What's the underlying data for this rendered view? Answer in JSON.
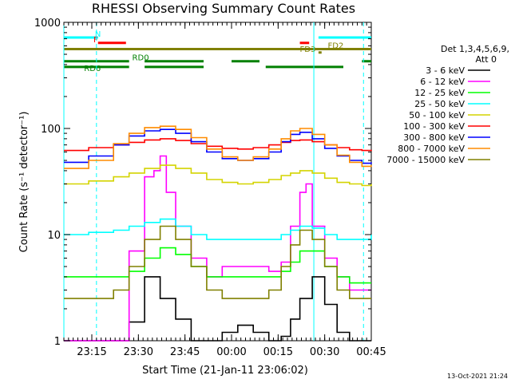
{
  "chart_data": {
    "type": "line",
    "title": "RHESSI Observing Summary Count Rates",
    "xlabel": "Start Time (21-Jan-11 23:06:02)",
    "ylabel": "Count Rate (s⁻¹ detector⁻¹)",
    "y_scale": "log",
    "ylim": [
      1,
      1000
    ],
    "xlim_minutes": [
      0,
      99
    ],
    "x_ticks": [
      {
        "label": "23:15",
        "t": 9
      },
      {
        "label": "23:30",
        "t": 24
      },
      {
        "label": "23:45",
        "t": 39
      },
      {
        "label": "00:00",
        "t": 54
      },
      {
        "label": "00:15",
        "t": 69
      },
      {
        "label": "00:30",
        "t": 84
      },
      {
        "label": "00:45",
        "t": 99
      }
    ],
    "y_ticks": [
      {
        "label": "1",
        "v": 1
      },
      {
        "label": "10",
        "v": 10
      },
      {
        "label": "100",
        "v": 100
      },
      {
        "label": "1000",
        "v": 1000
      }
    ],
    "legend_header": [
      "Det 1,3,4,5,6,9,",
      "Att 0"
    ],
    "series": [
      {
        "name": "3 - 6 keV",
        "color": "#000000",
        "x": [
          0,
          8,
          16,
          21,
          26,
          31,
          36,
          41,
          46,
          51,
          56,
          61,
          66,
          70,
          73,
          76,
          80,
          84,
          88,
          92,
          96,
          99
        ],
        "y": [
          1.0,
          1.0,
          1.0,
          1.5,
          4.0,
          2.5,
          1.6,
          1.0,
          1.0,
          1.2,
          1.4,
          1.2,
          1.0,
          1.1,
          1.6,
          2.5,
          4.0,
          2.2,
          1.2,
          1.0,
          1.0,
          1.0
        ]
      },
      {
        "name": "6 - 12 keV",
        "color": "#ff00ff",
        "x": [
          0,
          8,
          16,
          21,
          26,
          29,
          31,
          33,
          36,
          41,
          46,
          51,
          56,
          61,
          66,
          70,
          73,
          76,
          78,
          80,
          84,
          88,
          92,
          96,
          99
        ],
        "y": [
          1.0,
          1.0,
          1.0,
          7.0,
          35.0,
          40.0,
          55.0,
          25.0,
          12.0,
          6.0,
          4.0,
          5.0,
          5.0,
          5.0,
          4.5,
          5.5,
          12.0,
          25.0,
          30.0,
          12.0,
          6.0,
          4.0,
          3.0,
          3.0,
          3.0
        ]
      },
      {
        "name": "12 - 25 keV",
        "color": "#00ff00",
        "x": [
          0,
          8,
          16,
          21,
          26,
          31,
          36,
          41,
          46,
          51,
          56,
          61,
          66,
          70,
          73,
          76,
          80,
          84,
          88,
          92,
          96,
          99
        ],
        "y": [
          4.0,
          4.0,
          4.0,
          4.5,
          6.0,
          7.5,
          6.5,
          5.0,
          4.0,
          4.0,
          4.0,
          4.0,
          4.0,
          4.5,
          5.5,
          7.0,
          7.0,
          5.0,
          4.0,
          3.5,
          3.5,
          3.5
        ]
      },
      {
        "name": "25 - 50 keV",
        "color": "#00ffff",
        "x": [
          0,
          8,
          16,
          21,
          26,
          31,
          36,
          41,
          46,
          51,
          56,
          61,
          66,
          70,
          73,
          76,
          80,
          84,
          88,
          92,
          96,
          99
        ],
        "y": [
          10.0,
          10.5,
          11.0,
          12.0,
          13.0,
          14.0,
          12.0,
          10.0,
          9.0,
          9.0,
          9.0,
          9.0,
          9.0,
          10.0,
          11.0,
          12.0,
          11.5,
          10.0,
          9.0,
          9.0,
          9.0,
          10.0
        ]
      },
      {
        "name": "50 - 100 keV",
        "color": "#d4d400",
        "x": [
          0,
          8,
          16,
          21,
          26,
          31,
          36,
          41,
          46,
          51,
          56,
          61,
          66,
          70,
          73,
          76,
          80,
          84,
          88,
          92,
          96,
          99
        ],
        "y": [
          30.0,
          32.0,
          35.0,
          38.0,
          42.0,
          45.0,
          42.0,
          38.0,
          33.0,
          31.0,
          30.0,
          31.0,
          33.0,
          36.0,
          38.0,
          40.0,
          38.0,
          34.0,
          31.0,
          30.0,
          29.0,
          30.0
        ]
      },
      {
        "name": "100 - 300 keV",
        "color": "#ff0000",
        "x": [
          0,
          8,
          16,
          21,
          26,
          31,
          36,
          41,
          46,
          51,
          56,
          61,
          66,
          70,
          73,
          76,
          80,
          84,
          88,
          92,
          96,
          99
        ],
        "y": [
          62.0,
          66.0,
          70.0,
          74.0,
          78.0,
          80.0,
          77.0,
          72.0,
          68.0,
          65.0,
          64.0,
          66.0,
          70.0,
          74.0,
          77.0,
          78.0,
          75.0,
          70.0,
          66.0,
          63.0,
          62.0,
          63.0
        ]
      },
      {
        "name": "300 - 800 keV",
        "color": "#0000ff",
        "x": [
          0,
          8,
          16,
          21,
          26,
          31,
          36,
          41,
          46,
          51,
          56,
          61,
          66,
          70,
          73,
          76,
          80,
          84,
          88,
          92,
          96,
          99
        ],
        "y": [
          48.0,
          55.0,
          70.0,
          85.0,
          95.0,
          98.0,
          90.0,
          75.0,
          60.0,
          52.0,
          50.0,
          52.0,
          60.0,
          75.0,
          88.0,
          92.0,
          80.0,
          65.0,
          55.0,
          50.0,
          47.0,
          48.0
        ]
      },
      {
        "name": "800 - 7000 keV",
        "color": "#ff8c00",
        "x": [
          0,
          8,
          16,
          21,
          26,
          31,
          36,
          41,
          46,
          51,
          56,
          61,
          66,
          70,
          73,
          76,
          80,
          84,
          88,
          92,
          96,
          99
        ],
        "y": [
          42.0,
          50.0,
          72.0,
          90.0,
          102.0,
          105.0,
          98.0,
          82.0,
          64.0,
          54.0,
          50.0,
          54.0,
          64.0,
          80.0,
          95.0,
          100.0,
          88.0,
          70.0,
          56.0,
          48.0,
          44.0,
          45.0
        ]
      },
      {
        "name": "7000 - 15000 keV",
        "color": "#808000",
        "x": [
          0,
          8,
          16,
          21,
          26,
          31,
          36,
          41,
          46,
          51,
          56,
          61,
          66,
          70,
          73,
          76,
          80,
          84,
          88,
          92,
          96,
          99
        ],
        "y": [
          2.5,
          2.5,
          3.0,
          5.0,
          9.0,
          12.0,
          9.0,
          5.0,
          3.0,
          2.5,
          2.5,
          2.5,
          3.0,
          5.0,
          8.0,
          11.0,
          9.0,
          5.0,
          3.0,
          2.5,
          2.5,
          2.5
        ]
      }
    ],
    "flag_bars": [
      {
        "label": "N",
        "color": "#00ffff",
        "v": 720,
        "segments": [
          [
            0,
            11
          ],
          [
            82,
            99
          ]
        ]
      },
      {
        "label": "F",
        "color": "#ff0000",
        "v": 640,
        "segments": [
          [
            11,
            20
          ],
          [
            76,
            79
          ]
        ]
      },
      {
        "label": "FD2",
        "color": "#808000",
        "v": 560,
        "segments": [
          [
            0,
            99
          ]
        ]
      },
      {
        "label": "FD3",
        "color": "#808000",
        "v": 520,
        "segments": [
          [
            82,
            83
          ]
        ]
      },
      {
        "label": "RD0",
        "color": "#008000",
        "v": 430,
        "segments": [
          [
            0,
            21
          ],
          [
            26,
            45
          ],
          [
            54,
            63
          ],
          [
            96,
            99
          ]
        ]
      },
      {
        "label": "RD6",
        "color": "#008000",
        "v": 380,
        "segments": [
          [
            0,
            21
          ],
          [
            26,
            45
          ],
          [
            65,
            90
          ]
        ]
      }
    ],
    "vertical_markers": [
      {
        "t": 0,
        "style": "solid"
      },
      {
        "t": 10.5,
        "style": "dashed"
      },
      {
        "t": 80.5,
        "style": "solid"
      },
      {
        "t": 96.5,
        "style": "dashed"
      }
    ],
    "grid": false,
    "legend_position": "right"
  },
  "timestamp": "13-Oct-2021 21:24"
}
